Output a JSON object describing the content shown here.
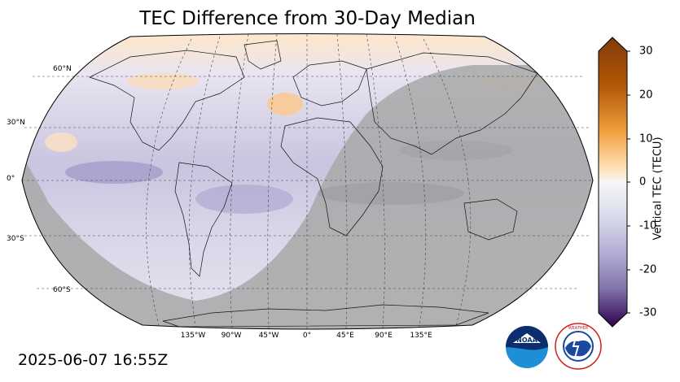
{
  "title": "TEC Difference from 30-Day Median",
  "timestamp": "2025-06-07 16:55Z",
  "lat_labels": [
    "60°N",
    "30°N",
    "0°",
    "30°S",
    "60°S"
  ],
  "lon_labels": [
    "135°W",
    "90°W",
    "45°W",
    "0°",
    "45°E",
    "90°E",
    "135°E"
  ],
  "colorbar": {
    "label": "Vertical TEC (TECU)",
    "range": [
      -30,
      30
    ],
    "ticks": [
      "30",
      "20",
      "10",
      "0",
      "-10",
      "-20",
      "-30"
    ],
    "colors": {
      "max": "#7f3b08",
      "high": "#e08214",
      "mid_high": "#fdb863",
      "neutral": "#f7f7f7",
      "mid_low": "#b2abd2",
      "low": "#8073ac",
      "min": "#2d004b"
    }
  },
  "overlay": {
    "night_shade_color": "#a8a8a8"
  },
  "logos": {
    "noaa": "NOAA",
    "nws": "NATIONAL WEATHER SERVICE"
  }
}
